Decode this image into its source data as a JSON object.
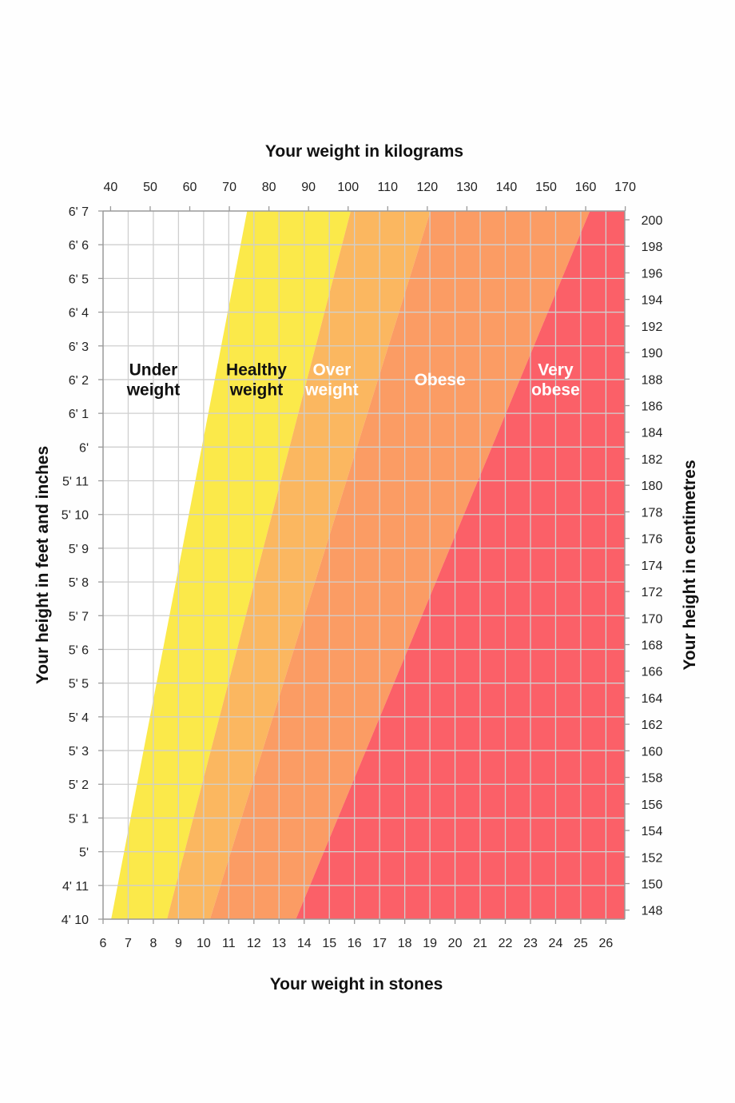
{
  "chart_data": {
    "type": "area",
    "top_axis": {
      "title": "Your weight in kilograms",
      "unit": "kg",
      "ticks": [
        40,
        50,
        60,
        70,
        80,
        90,
        100,
        110,
        120,
        130,
        140,
        150,
        160,
        170
      ]
    },
    "bottom_axis": {
      "title": "Your weight in stones",
      "unit": "st",
      "ticks": [
        6,
        7,
        8,
        9,
        10,
        11,
        12,
        13,
        14,
        15,
        16,
        17,
        18,
        19,
        20,
        21,
        22,
        23,
        24,
        25,
        26
      ],
      "range": [
        6,
        26.75
      ]
    },
    "left_axis": {
      "title": "Your height in feet and inches",
      "range_inches": [
        58,
        79
      ],
      "ticks": [
        {
          "inches": 58,
          "label": "4' 10"
        },
        {
          "inches": 59,
          "label": "4' 11"
        },
        {
          "inches": 60,
          "label": "5'"
        },
        {
          "inches": 61,
          "label": "5' 1"
        },
        {
          "inches": 62,
          "label": "5' 2"
        },
        {
          "inches": 63,
          "label": "5' 3"
        },
        {
          "inches": 64,
          "label": "5' 4"
        },
        {
          "inches": 65,
          "label": "5' 5"
        },
        {
          "inches": 66,
          "label": "5' 6"
        },
        {
          "inches": 67,
          "label": "5' 7"
        },
        {
          "inches": 68,
          "label": "5' 8"
        },
        {
          "inches": 69,
          "label": "5' 9"
        },
        {
          "inches": 70,
          "label": "5' 10"
        },
        {
          "inches": 71,
          "label": "5' 11"
        },
        {
          "inches": 72,
          "label": "6'"
        },
        {
          "inches": 73,
          "label": "6' 1"
        },
        {
          "inches": 74,
          "label": "6' 2"
        },
        {
          "inches": 75,
          "label": "6' 3"
        },
        {
          "inches": 76,
          "label": "6' 4"
        },
        {
          "inches": 77,
          "label": "6' 5"
        },
        {
          "inches": 78,
          "label": "6' 6"
        },
        {
          "inches": 79,
          "label": "6' 7"
        }
      ]
    },
    "right_axis": {
      "title": "Your height in centimetres",
      "unit": "cm",
      "ticks": [
        148,
        150,
        152,
        154,
        156,
        158,
        160,
        162,
        164,
        166,
        168,
        170,
        172,
        174,
        176,
        178,
        180,
        182,
        184,
        186,
        188,
        190,
        192,
        194,
        196,
        198,
        200
      ]
    },
    "zones": [
      {
        "name": "Under weight",
        "lines": [
          "Under",
          "weight"
        ],
        "bmi_min": 0,
        "bmi_max": 18.5,
        "color": "#ffffff",
        "label_color": "#111111",
        "label_at": {
          "st": 8.0,
          "inches": 74
        }
      },
      {
        "name": "Healthy weight",
        "lines": [
          "Healthy",
          "weight"
        ],
        "bmi_min": 18.5,
        "bmi_max": 25,
        "color": "#fbe94a",
        "label_color": "#111111",
        "label_at": {
          "st": 12.1,
          "inches": 74
        }
      },
      {
        "name": "Over weight",
        "lines": [
          "Over",
          "weight"
        ],
        "bmi_min": 25,
        "bmi_max": 30,
        "color": "#fbb760",
        "label_color": "#ffffff",
        "label_at": {
          "st": 15.1,
          "inches": 74
        }
      },
      {
        "name": "Obese",
        "lines": [
          "Obese"
        ],
        "bmi_min": 30,
        "bmi_max": 40,
        "color": "#fb9c64",
        "label_color": "#ffffff",
        "label_at": {
          "st": 19.4,
          "inches": 74
        }
      },
      {
        "name": "Very obese",
        "lines": [
          "Very",
          "obese"
        ],
        "bmi_min": 40,
        "bmi_max": null,
        "color": "#fb6068",
        "label_color": "#ffffff",
        "label_at": {
          "st": 24.0,
          "inches": 74
        }
      }
    ],
    "grid": true
  }
}
